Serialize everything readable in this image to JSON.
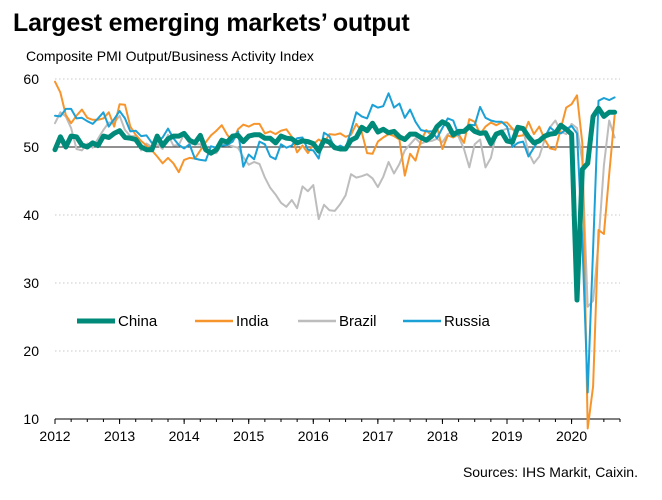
{
  "title": "Largest emerging markets’ output",
  "subtitle": "Composite PMI Output/Business  Activity Index",
  "source": "Sources: IHS Markit, Caixin.",
  "chart_data": {
    "type": "line",
    "title": "Largest emerging markets’ output",
    "subtitle": "Composite PMI Output/Business  Activity Index",
    "xlabel": "",
    "ylabel": "",
    "ylim": [
      10,
      60
    ],
    "yticks": [
      10,
      20,
      30,
      40,
      50,
      60
    ],
    "xlim": [
      2012.0,
      2020.75
    ],
    "xticks": [
      "2012",
      "2013",
      "2014",
      "2015",
      "2016",
      "2017",
      "2018",
      "2019",
      "2020"
    ],
    "grid": "horizontal",
    "reference_line": 50,
    "legend_position": "lower-left",
    "x_start": "2012-01",
    "x_step": "monthly",
    "series": [
      {
        "name": "China",
        "color": "#008a7a",
        "width": 5,
        "values": [
          49.6,
          51.5,
          50.0,
          51.6,
          51.5,
          50.3,
          50.0,
          50.6,
          50.2,
          51.6,
          51.4,
          52.0,
          52.4,
          51.4,
          51.3,
          51.1,
          50.0,
          49.6,
          49.6,
          51.6,
          50.2,
          51.2,
          51.6,
          51.6,
          52.0,
          51.0,
          50.6,
          51.7,
          49.6,
          49.1,
          49.6,
          51.0,
          50.7,
          51.6,
          51.7,
          50.8,
          51.6,
          51.8,
          51.8,
          51.3,
          51.3,
          50.6,
          51.6,
          51.3,
          51.2,
          50.6,
          50.9,
          50.8,
          50.5,
          49.4,
          51.0,
          50.7,
          49.9,
          49.7,
          49.7,
          51.0,
          51.4,
          52.9,
          52.4,
          53.5,
          52.2,
          52.6,
          52.1,
          52.3,
          51.5,
          51.1,
          51.9,
          51.9,
          51.4,
          51.0,
          51.6,
          53.0,
          53.7,
          53.3,
          51.8,
          52.3,
          52.3,
          53.0,
          52.3,
          52.0,
          52.1,
          50.5,
          51.9,
          52.2,
          50.9,
          50.7,
          52.9,
          52.7,
          51.5,
          50.6,
          50.9,
          51.6,
          51.9,
          52.0,
          53.2,
          52.6,
          51.9,
          27.5,
          46.7,
          47.6,
          54.5,
          55.7,
          54.5,
          55.1,
          55.1
        ],
        "values_note": "Jan 2012 - Sep 2020"
      },
      {
        "name": "India",
        "color": "#f7952d",
        "width": 2,
        "values": [
          59.6,
          58.0,
          54.7,
          53.5,
          54.6,
          55.5,
          54.3,
          54.0,
          54.0,
          54.2,
          55.1,
          53.0,
          56.3,
          56.2,
          53.0,
          51.8,
          50.9,
          50.2,
          49.5,
          48.6,
          47.6,
          48.4,
          47.6,
          46.3,
          48.1,
          48.4,
          48.3,
          49.5,
          50.7,
          51.7,
          52.4,
          53.2,
          51.8,
          50.8,
          52.6,
          53.3,
          53.0,
          53.4,
          53.4,
          52.0,
          52.3,
          51.9,
          52.4,
          52.6,
          51.5,
          49.2,
          50.2,
          49.1,
          50.4,
          51.1,
          50.6,
          51.9,
          51.8,
          52.0,
          51.5,
          51.8,
          53.4,
          52.2,
          49.1,
          49.0,
          50.8,
          51.4,
          51.9,
          51.6,
          51.1,
          45.8,
          49.0,
          48.0,
          50.9,
          52.5,
          51.6,
          53.0,
          49.7,
          51.7,
          51.4,
          51.9,
          50.6,
          54.1,
          53.7,
          51.9,
          53.0,
          53.6,
          53.2,
          53.6,
          53.6,
          52.7,
          51.6,
          51.7,
          53.7,
          51.9,
          53.0,
          51.1,
          49.8,
          49.6,
          52.7,
          55.8,
          56.3,
          57.6,
          50.6,
          8.6,
          14.8,
          37.8,
          37.2,
          46.0,
          54.6
        ],
        "values_note": "Jan 2012 - Sep 2020"
      },
      {
        "name": "Brazil",
        "color": "#bdbdbd",
        "width": 2,
        "values": [
          53.5,
          55.1,
          54.5,
          52.8,
          49.7,
          49.5,
          50.5,
          49.9,
          51.2,
          52.5,
          53.6,
          53.6,
          54.6,
          52.5,
          51.6,
          51.6,
          49.5,
          50.5,
          50.0,
          50.4,
          49.7,
          51.8,
          50.2,
          50.3,
          51.9,
          50.5,
          50.4,
          50.4,
          49.3,
          49.1,
          49.1,
          50.4,
          50.3,
          50.1,
          49.9,
          48.5,
          47.4,
          47.8,
          47.5,
          45.5,
          44.0,
          43.0,
          41.8,
          41.2,
          42.2,
          41.0,
          44.2,
          43.5,
          44.4,
          39.4,
          41.5,
          40.7,
          40.6,
          41.6,
          42.9,
          46.0,
          45.5,
          45.7,
          46.0,
          45.4,
          44.1,
          45.6,
          47.8,
          46.1,
          47.5,
          49.5,
          50.4,
          51.3,
          50.5,
          50.8,
          50.9,
          51.2,
          50.7,
          51.9,
          52.3,
          51.5,
          49.7,
          47.0,
          50.4,
          51.1,
          47.0,
          48.4,
          51.9,
          52.4,
          52.7,
          52.6,
          52.5,
          52.5,
          49.2,
          47.6,
          48.6,
          51.1,
          52.9,
          53.9,
          52.2,
          51.9,
          53.4,
          52.8,
          47.9,
          26.5,
          27.4,
          35.9,
          47.3,
          53.9,
          51.4
        ],
        "values_note": "Jan 2012 - Sep 2020"
      },
      {
        "name": "Russia",
        "color": "#1ba1d6",
        "width": 2,
        "values": [
          54.6,
          54.5,
          55.6,
          55.6,
          54.2,
          54.3,
          53.8,
          53.4,
          54.2,
          55.1,
          53.0,
          54.1,
          55.3,
          54.2,
          52.3,
          52.4,
          51.6,
          51.7,
          50.6,
          50.8,
          51.4,
          52.7,
          51.3,
          50.3,
          49.8,
          50.4,
          48.3,
          48.1,
          48.0,
          50.1,
          49.9,
          50.2,
          50.3,
          50.8,
          52.3,
          47.1,
          48.9,
          48.2,
          50.8,
          50.4,
          48.6,
          48.2,
          50.4,
          49.9,
          50.2,
          51.3,
          51.4,
          49.6,
          49.5,
          48.3,
          52.1,
          51.6,
          49.7,
          50.2,
          49.8,
          52.4,
          55.1,
          54.5,
          54.2,
          56.2,
          55.8,
          56.0,
          57.9,
          55.8,
          56.4,
          54.3,
          55.5,
          53.7,
          52.5,
          52.3,
          52.3,
          51.3,
          52.8,
          54.2,
          53.9,
          51.8,
          52.4,
          53.3,
          53.2,
          55.9,
          54.3,
          53.9,
          53.7,
          53.7,
          53.0,
          50.0,
          50.6,
          50.8,
          48.6,
          49.9,
          51.1,
          51.4,
          52.9,
          52.2,
          52.0,
          52.6,
          53.1,
          52.0,
          36.3,
          13.9,
          35.0,
          56.8,
          57.2,
          56.9,
          57.3
        ],
        "values_note": "Jan 2012 - Sep 2020"
      }
    ]
  }
}
